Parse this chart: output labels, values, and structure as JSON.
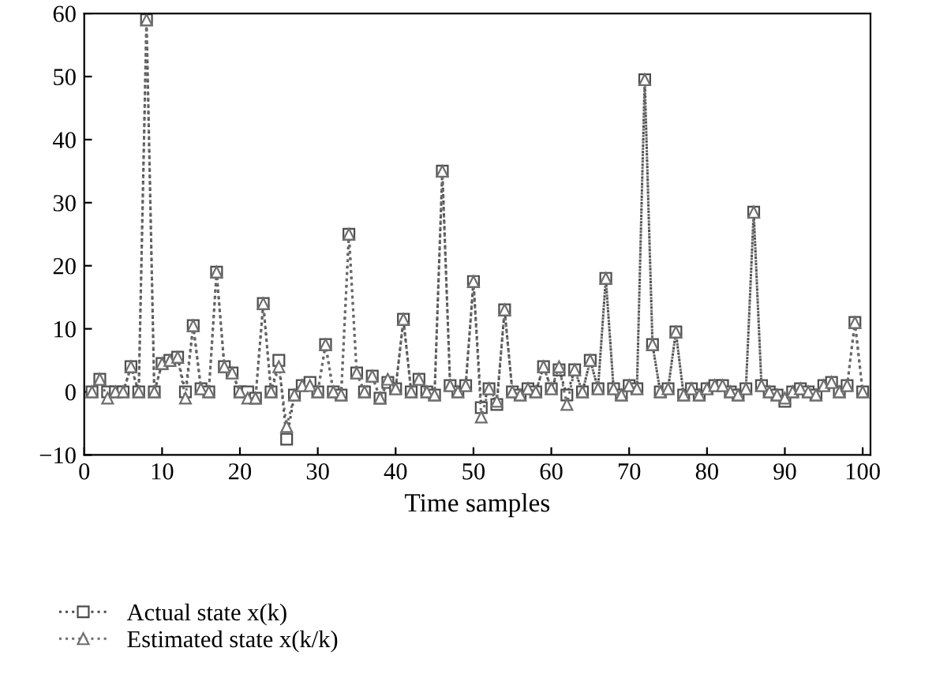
{
  "chart_data": {
    "type": "line",
    "xlabel": "Time samples",
    "x": [
      1,
      2,
      3,
      4,
      5,
      6,
      7,
      8,
      9,
      10,
      11,
      12,
      13,
      14,
      15,
      16,
      17,
      18,
      19,
      20,
      21,
      22,
      23,
      24,
      25,
      26,
      27,
      28,
      29,
      30,
      31,
      32,
      33,
      34,
      35,
      36,
      37,
      38,
      39,
      40,
      41,
      42,
      43,
      44,
      45,
      46,
      47,
      48,
      49,
      50,
      51,
      52,
      53,
      54,
      55,
      56,
      57,
      58,
      59,
      60,
      61,
      62,
      63,
      64,
      65,
      66,
      67,
      68,
      69,
      70,
      71,
      72,
      73,
      74,
      75,
      76,
      77,
      78,
      79,
      80,
      81,
      82,
      83,
      84,
      85,
      86,
      87,
      88,
      89,
      90,
      91,
      92,
      93,
      94,
      95,
      96,
      97,
      98,
      99,
      100
    ],
    "series": [
      {
        "name": "Actual state x(k)",
        "color": "#4d4d4d",
        "marker": "square",
        "values": [
          0,
          2,
          0,
          0,
          0,
          4,
          0,
          59,
          0,
          4.5,
          5,
          5.5,
          0,
          10.5,
          0.5,
          0,
          19,
          4,
          3,
          0,
          0,
          -1,
          14,
          0,
          5,
          -7.5,
          -0.5,
          1,
          1.5,
          0,
          7.5,
          0,
          -0.5,
          25,
          3,
          0,
          2.5,
          -1,
          1.5,
          0.5,
          11.5,
          0,
          2,
          0,
          -0.5,
          35,
          1,
          0,
          1,
          17.5,
          -2.5,
          0.5,
          -2,
          13,
          0,
          -0.5,
          0.5,
          0,
          4,
          0.5,
          3.5,
          -0.5,
          3.5,
          0,
          5,
          0.5,
          18,
          0.5,
          -0.5,
          1,
          0.5,
          49.5,
          7.5,
          0,
          0.5,
          9.5,
          -0.5,
          0.5,
          -0.5,
          0.5,
          1,
          1,
          0,
          -0.5,
          0.5,
          28.5,
          1,
          0,
          -0.5,
          -1.5,
          0,
          0.5,
          0,
          -0.5,
          1,
          1.5,
          0,
          1,
          11,
          0
        ]
      },
      {
        "name": "Estimated state x(k/k)",
        "color": "#6e6e6e",
        "marker": "triangle",
        "values": [
          0,
          2,
          -1,
          0,
          0,
          4,
          0,
          59,
          0,
          4.5,
          5,
          5.5,
          -1,
          10.5,
          0.5,
          0,
          19,
          4,
          3,
          0,
          -1,
          -1,
          14,
          0,
          4,
          -5.5,
          -0.5,
          1,
          1,
          0,
          7.5,
          0,
          -0.5,
          25,
          3,
          0,
          2.5,
          -1,
          2,
          0.5,
          11.5,
          0,
          2,
          0,
          -0.5,
          35,
          1,
          0,
          1,
          17.5,
          -4,
          0.5,
          -1.5,
          13,
          0,
          -0.5,
          0.5,
          0,
          4,
          0.5,
          4,
          -2,
          3.5,
          0,
          5,
          0.5,
          18,
          0.5,
          -0.5,
          1,
          0.5,
          49.5,
          7.5,
          0,
          0.5,
          9.5,
          -0.5,
          0.5,
          -0.5,
          0.5,
          1,
          1,
          0,
          -0.5,
          0.5,
          28.5,
          1,
          0,
          -0.5,
          -1,
          0,
          0.5,
          0,
          -0.5,
          1,
          1.5,
          0,
          1,
          11,
          0
        ]
      }
    ],
    "xlim": [
      0,
      101
    ],
    "xticks": [
      0,
      10,
      20,
      30,
      40,
      50,
      60,
      70,
      80,
      90,
      100
    ],
    "ylim": [
      -10,
      60
    ],
    "yticks": [
      {
        "value": -10,
        "label": "−10"
      },
      0,
      10,
      20,
      30,
      40,
      50,
      60
    ],
    "line_style": "dotted",
    "grid": false,
    "legend": "bottom"
  }
}
